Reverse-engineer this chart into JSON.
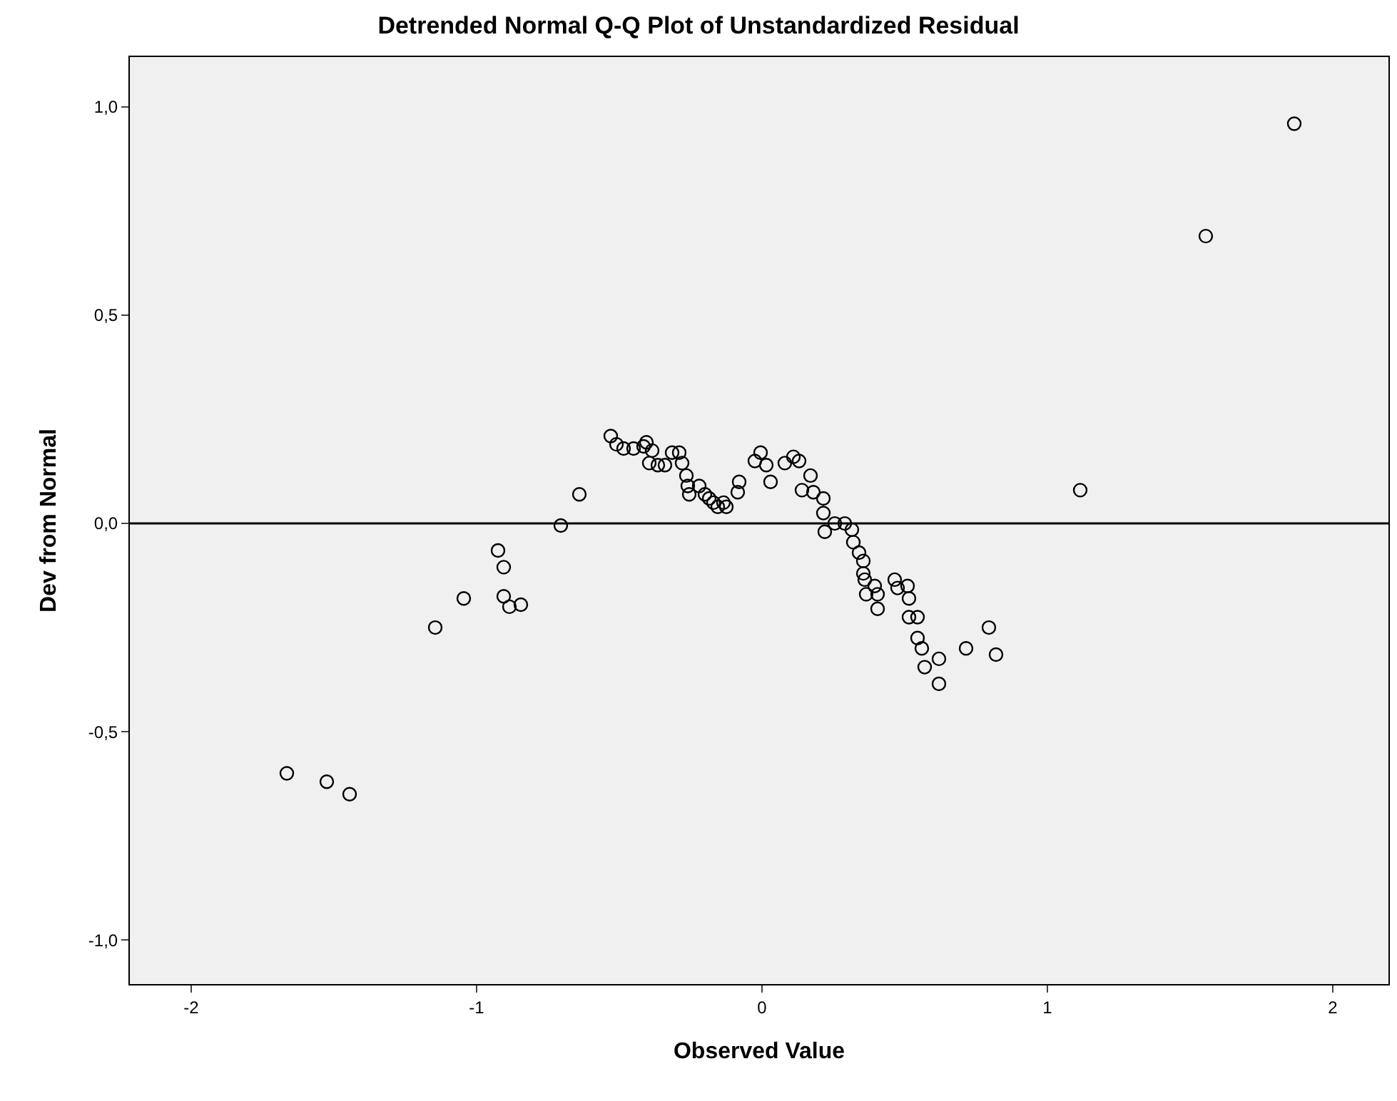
{
  "chart_data": {
    "type": "scatter",
    "title": "Detrended Normal Q-Q Plot of Unstandardized Residual",
    "xlabel": "Observed Value",
    "ylabel": "Dev from Normal",
    "x": [
      -1.665,
      -1.525,
      -1.445,
      -1.145,
      -1.045,
      -0.925,
      -0.905,
      -0.905,
      -0.885,
      -0.845,
      -0.705,
      -0.64,
      -0.53,
      -0.51,
      -0.485,
      -0.45,
      -0.415,
      -0.405,
      -0.385,
      -0.395,
      -0.365,
      -0.34,
      -0.315,
      -0.29,
      -0.28,
      -0.265,
      -0.26,
      -0.255,
      -0.22,
      -0.2,
      -0.185,
      -0.17,
      -0.155,
      -0.135,
      -0.125,
      -0.085,
      -0.08,
      -0.005,
      -0.025,
      0.015,
      0.03,
      0.08,
      0.11,
      0.13,
      0.14,
      0.17,
      0.18,
      0.215,
      0.215,
      0.22,
      0.255,
      0.29,
      0.315,
      0.32,
      0.34,
      0.355,
      0.355,
      0.36,
      0.365,
      0.395,
      0.405,
      0.405,
      0.465,
      0.475,
      0.51,
      0.515,
      0.515,
      0.545,
      0.545,
      0.56,
      0.57,
      0.62,
      0.62,
      0.715,
      0.795,
      0.82,
      1.115,
      1.555,
      1.865
    ],
    "values": [
      -0.6,
      -0.62,
      -0.65,
      -0.25,
      -0.18,
      -0.065,
      -0.105,
      -0.175,
      -0.2,
      -0.195,
      -0.005,
      0.07,
      0.21,
      0.19,
      0.18,
      0.18,
      0.185,
      0.195,
      0.175,
      0.145,
      0.14,
      0.14,
      0.17,
      0.17,
      0.145,
      0.115,
      0.09,
      0.07,
      0.09,
      0.07,
      0.06,
      0.05,
      0.04,
      0.05,
      0.04,
      0.075,
      0.1,
      0.17,
      0.15,
      0.14,
      0.1,
      0.145,
      0.16,
      0.15,
      0.08,
      0.115,
      0.075,
      0.06,
      0.025,
      -0.02,
      0,
      0,
      -0.015,
      -0.045,
      -0.07,
      -0.09,
      -0.12,
      -0.135,
      -0.17,
      -0.15,
      -0.17,
      -0.205,
      -0.135,
      -0.155,
      -0.15,
      -0.18,
      -0.225,
      -0.225,
      -0.275,
      -0.3,
      -0.345,
      -0.325,
      -0.385,
      -0.3,
      -0.25,
      -0.315,
      0.08,
      0.69,
      0.96
    ],
    "color": "#000000",
    "marker": "circle",
    "xlim": [
      -2.215,
      2.195
    ],
    "xticks": [
      -2,
      -1,
      0,
      1,
      2
    ],
    "ylim": [
      -1.106,
      1.12
    ],
    "yticks": [
      {
        "value": -1,
        "label": "-1,0"
      },
      {
        "value": -0.5,
        "label": "-0,5"
      },
      {
        "value": 0,
        "label": "0,0"
      },
      {
        "value": 0.5,
        "label": "0,5"
      },
      {
        "value": 1,
        "label": "1,0"
      }
    ],
    "ref_lines": [
      {
        "axis": "y",
        "value": 0,
        "color": "#000000"
      }
    ]
  }
}
